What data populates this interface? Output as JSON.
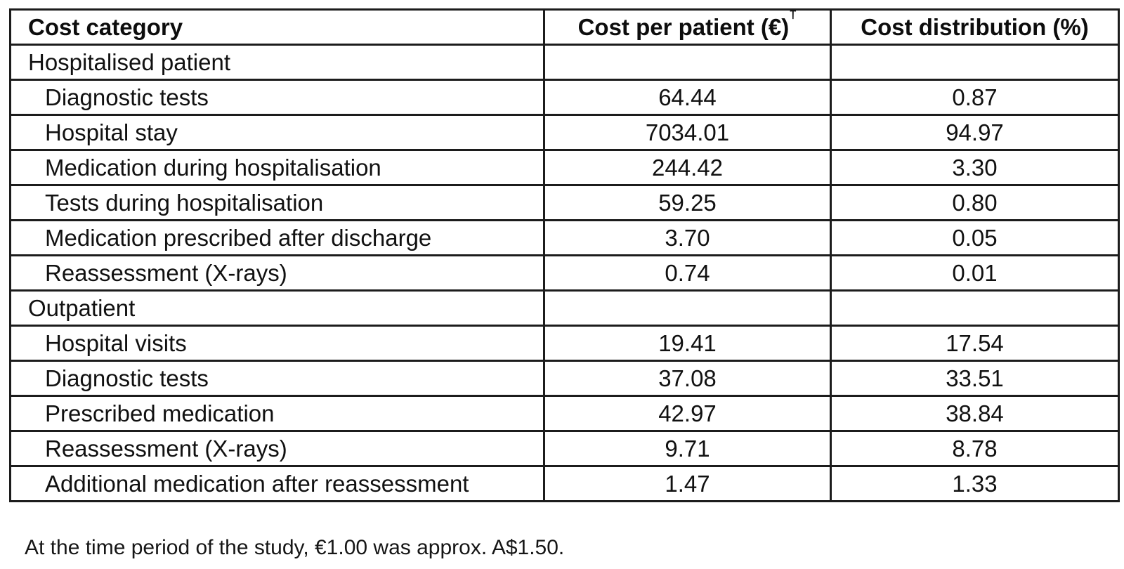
{
  "table": {
    "headers": [
      {
        "label": "Cost category"
      },
      {
        "label": "Cost per patient (€)",
        "superscript": "†"
      },
      {
        "label": "Cost distribution (%)"
      }
    ],
    "rows": [
      {
        "category": "Hospitalised patient",
        "indent": false,
        "section": true,
        "cost": "",
        "distribution": ""
      },
      {
        "category": "Diagnostic tests",
        "indent": true,
        "section": false,
        "cost": "64.44",
        "distribution": "0.87"
      },
      {
        "category": "Hospital stay",
        "indent": true,
        "section": false,
        "cost": "7034.01",
        "distribution": "94.97"
      },
      {
        "category": "Medication during hospitalisation",
        "indent": true,
        "section": false,
        "cost": "244.42",
        "distribution": "3.30"
      },
      {
        "category": "Tests during hospitalisation",
        "indent": true,
        "section": false,
        "cost": "59.25",
        "distribution": "0.80"
      },
      {
        "category": "Medication prescribed after discharge",
        "indent": true,
        "section": false,
        "cost": "3.70",
        "distribution": "0.05"
      },
      {
        "category": "Reassessment (X-rays)",
        "indent": true,
        "section": false,
        "cost": "0.74",
        "distribution": "0.01"
      },
      {
        "category": "Outpatient",
        "indent": false,
        "section": true,
        "cost": "",
        "distribution": ""
      },
      {
        "category": "Hospital visits",
        "indent": true,
        "section": false,
        "cost": "19.41",
        "distribution": "17.54"
      },
      {
        "category": "Diagnostic tests",
        "indent": true,
        "section": false,
        "cost": "37.08",
        "distribution": "33.51"
      },
      {
        "category": "Prescribed medication",
        "indent": true,
        "section": false,
        "cost": "42.97",
        "distribution": "38.84"
      },
      {
        "category": "Reassessment (X-rays)",
        "indent": true,
        "section": false,
        "cost": "9.71",
        "distribution": "8.78"
      },
      {
        "category": "Additional medication after reassessment",
        "indent": true,
        "section": false,
        "cost": "1.47",
        "distribution": "1.33"
      }
    ]
  },
  "footnote": "At the time period of the study, €1.00 was approx. A$1.50.",
  "colors": {
    "border": "#1c1c1c",
    "text": "#111111",
    "background": "#ffffff"
  }
}
